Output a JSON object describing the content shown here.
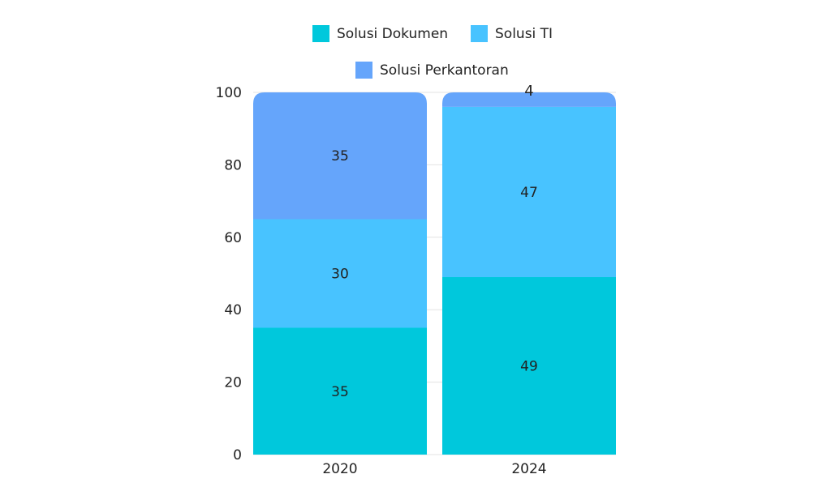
{
  "chart_data": {
    "type": "bar",
    "stacked": true,
    "categories": [
      "2020",
      "2024"
    ],
    "series": [
      {
        "name": "Solusi Dokumen",
        "values": [
          35,
          49
        ],
        "color": "#00C8DC"
      },
      {
        "name": "Solusi TI",
        "values": [
          30,
          47
        ],
        "color": "#48C3FF"
      },
      {
        "name": "Solusi Perkantoran",
        "values": [
          35,
          4
        ],
        "color": "#65A5FB"
      }
    ],
    "title": "",
    "xlabel": "",
    "ylabel": "",
    "ylim": [
      0,
      100
    ],
    "yticks": [
      0,
      20,
      40,
      60,
      80,
      100
    ],
    "grid": true,
    "legend_position": "top"
  }
}
